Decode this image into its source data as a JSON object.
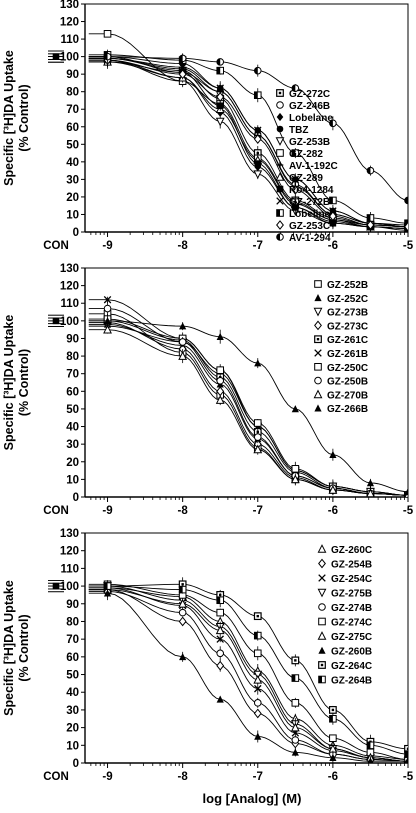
{
  "figure": {
    "xlabel": "log [Analog] (M)"
  },
  "chart_data": [
    {
      "type": "line",
      "panel": "top",
      "ylabel": "Specific [³H]DA Uptake",
      "ylabel2": "(% Control)",
      "xlabel": "",
      "xlim": [
        -9.3,
        -5
      ],
      "ylim": [
        0,
        130
      ],
      "yticks": [
        "0",
        "10",
        "20",
        "30",
        "40",
        "50",
        "60",
        "70",
        "80",
        "90",
        "100",
        "110",
        "120",
        "130"
      ],
      "xticks": [
        "CON",
        "-9",
        "-8",
        "-7",
        "-6",
        "-5"
      ],
      "legend_columns": 1,
      "series": [
        {
          "name": "GZ-272C",
          "marker": "square-dot",
          "x": [
            -9,
            -8,
            -7.5,
            -7,
            -6.5,
            -6,
            -5.5,
            -5
          ],
          "y": [
            99,
            92,
            76,
            45,
            18,
            8,
            4,
            3
          ]
        },
        {
          "name": "GZ-246B",
          "marker": "circle-open",
          "x": [
            -9,
            -8,
            -7.5,
            -7,
            -6.5,
            -6,
            -5.5,
            -5
          ],
          "y": [
            97,
            91,
            80,
            55,
            27,
            10,
            5,
            4
          ]
        },
        {
          "name": "Lobelane",
          "marker": "diamond-filled",
          "x": [
            -9,
            -8,
            -7.5,
            -7,
            -6.5,
            -6,
            -5.5,
            -5
          ],
          "y": [
            98,
            88,
            68,
            37,
            14,
            6,
            3,
            2
          ]
        },
        {
          "name": "TBZ",
          "marker": "circle-filled",
          "x": [
            -9,
            -8,
            -7.5,
            -7,
            -6.5,
            -6,
            -5.5,
            -5
          ],
          "y": [
            100,
            96,
            82,
            58,
            30,
            12,
            5,
            3
          ]
        },
        {
          "name": "GZ-253B",
          "marker": "triangle-down-open",
          "x": [
            -9,
            -8,
            -7.5,
            -7,
            -6.5,
            -6,
            -5.5,
            -5
          ],
          "y": [
            98,
            86,
            63,
            33,
            12,
            5,
            3,
            2
          ]
        },
        {
          "name": "GZ-282",
          "marker": "square-open",
          "x": [
            -9,
            -8,
            -7.5,
            -7,
            -6.5,
            -6,
            -5.5,
            -5
          ],
          "y": [
            113,
            86,
            73,
            42,
            17,
            7,
            4,
            3
          ]
        },
        {
          "name": "AV-1-192C",
          "marker": "plus",
          "x": [
            -9,
            -8,
            -7.5,
            -7,
            -6.5,
            -6,
            -5.5,
            -5
          ],
          "y": [
            99,
            93,
            80,
            55,
            26,
            10,
            5,
            3
          ]
        },
        {
          "name": "GZ-289",
          "marker": "triangle-open",
          "x": [
            -9,
            -8,
            -7.5,
            -7,
            -6.5,
            -6,
            -5.5,
            -5
          ],
          "y": [
            97,
            88,
            70,
            41,
            16,
            7,
            3,
            2
          ]
        },
        {
          "name": "Ro4-1284",
          "marker": "square-filled",
          "x": [
            -9,
            -8,
            -7.5,
            -7,
            -6.5,
            -6,
            -5.5,
            -5
          ],
          "y": [
            100,
            91,
            72,
            39,
            14,
            5,
            3,
            1
          ]
        },
        {
          "name": "GZ-272B",
          "marker": "x",
          "x": [
            -9,
            -8,
            -7.5,
            -7,
            -6.5,
            -6,
            -5.5,
            -5
          ],
          "y": [
            99,
            94,
            82,
            58,
            30,
            12,
            5,
            3
          ]
        },
        {
          "name": "Lobeline",
          "marker": "square-half",
          "x": [
            -9,
            -8,
            -7.5,
            -7,
            -6.5,
            -6,
            -5.5,
            -5
          ],
          "y": [
            101,
            98,
            92,
            78,
            45,
            18,
            8,
            5
          ]
        },
        {
          "name": "GZ-253C",
          "marker": "diamond-open",
          "x": [
            -9,
            -8,
            -7.5,
            -7,
            -6.5,
            -6,
            -5.5,
            -5
          ],
          "y": [
            98,
            90,
            77,
            53,
            24,
            9,
            4,
            3
          ]
        },
        {
          "name": "AV-1-294",
          "marker": "circle-half",
          "x": [
            -9,
            -8,
            -7.5,
            -7,
            -6.5,
            -6,
            -5.5,
            -5
          ],
          "y": [
            100,
            99,
            97,
            92,
            82,
            62,
            35,
            18
          ]
        }
      ]
    },
    {
      "type": "line",
      "panel": "middle",
      "ylabel": "Specific [³H]DA Uptake",
      "ylabel2": "(% Control)",
      "xlabel": "",
      "xlim": [
        -9.3,
        -5
      ],
      "ylim": [
        0,
        130
      ],
      "yticks": [
        "0",
        "10",
        "20",
        "30",
        "40",
        "50",
        "60",
        "70",
        "80",
        "90",
        "100",
        "110",
        "120",
        "130"
      ],
      "xticks": [
        "CON",
        "-9",
        "-8",
        "-7",
        "-6",
        "-5"
      ],
      "legend_columns": 1,
      "series": [
        {
          "name": "GZ-252B",
          "marker": "square-open",
          "x": [
            -9,
            -8,
            -7.5,
            -7,
            -6.5,
            -6,
            -5.5,
            -5
          ],
          "y": [
            104,
            82,
            58,
            28,
            10,
            4,
            2,
            1
          ]
        },
        {
          "name": "GZ-252C",
          "marker": "triangle-filled",
          "x": [
            -9,
            -8,
            -7.5,
            -7,
            -6.5,
            -6,
            -5.5,
            -5
          ],
          "y": [
            98,
            86,
            64,
            33,
            12,
            5,
            2,
            1
          ]
        },
        {
          "name": "GZ-273B",
          "marker": "triangle-down-open",
          "x": [
            -9,
            -8,
            -7.5,
            -7,
            -6.5,
            -6,
            -5.5,
            -5
          ],
          "y": [
            97,
            88,
            70,
            40,
            15,
            6,
            3,
            1
          ]
        },
        {
          "name": "GZ-273C",
          "marker": "diamond-open",
          "x": [
            -9,
            -8,
            -7.5,
            -7,
            -6.5,
            -6,
            -5.5,
            -5
          ],
          "y": [
            99,
            84,
            60,
            30,
            11,
            4,
            2,
            1
          ]
        },
        {
          "name": "GZ-261C",
          "marker": "square-dot",
          "x": [
            -9,
            -8,
            -7.5,
            -7,
            -6.5,
            -6,
            -5.5,
            -5
          ],
          "y": [
            100,
            89,
            68,
            37,
            14,
            5,
            2,
            1
          ]
        },
        {
          "name": "GZ-261B",
          "marker": "x",
          "x": [
            -9,
            -8,
            -7.5,
            -7,
            -6.5,
            -6,
            -5.5,
            -5
          ],
          "y": [
            112,
            90,
            72,
            40,
            15,
            6,
            3,
            1
          ]
        },
        {
          "name": "GZ-250C",
          "marker": "square-open",
          "x": [
            -9,
            -8,
            -7.5,
            -7,
            -6.5,
            -6,
            -5.5,
            -5
          ],
          "y": [
            101,
            90,
            72,
            42,
            16,
            6,
            3,
            1
          ]
        },
        {
          "name": "GZ-250B",
          "marker": "circle-open",
          "x": [
            -9,
            -8,
            -7.5,
            -7,
            -6.5,
            -6,
            -5.5,
            -5
          ],
          "y": [
            107,
            88,
            66,
            34,
            12,
            5,
            2,
            1
          ]
        },
        {
          "name": "GZ-270B",
          "marker": "triangle-open",
          "x": [
            -9,
            -8,
            -7.5,
            -7,
            -6.5,
            -6,
            -5.5,
            -5
          ],
          "y": [
            95,
            80,
            55,
            27,
            10,
            4,
            2,
            1
          ]
        },
        {
          "name": "GZ-266B",
          "marker": "triangle-filled",
          "x": [
            -9,
            -8,
            -7.5,
            -7,
            -6.5,
            -6,
            -5.5,
            -5
          ],
          "y": [
            100,
            97,
            91,
            76,
            50,
            24,
            8,
            3
          ]
        }
      ]
    },
    {
      "type": "line",
      "panel": "bottom",
      "ylabel": "Specific [³H]DA Uptake",
      "ylabel2": "(% Control)",
      "xlabel": "log [Analog] (M)",
      "xlim": [
        -9.3,
        -5
      ],
      "ylim": [
        0,
        130
      ],
      "yticks": [
        "0",
        "10",
        "20",
        "30",
        "40",
        "50",
        "60",
        "70",
        "80",
        "90",
        "100",
        "110",
        "120",
        "130"
      ],
      "xticks": [
        "CON",
        "-9",
        "-8",
        "-7",
        "-6",
        "-5"
      ],
      "legend_columns": 1,
      "series": [
        {
          "name": "GZ-260C",
          "marker": "triangle-open",
          "x": [
            -9,
            -8,
            -7.5,
            -7,
            -6.5,
            -6,
            -5.5,
            -5
          ],
          "y": [
            99,
            94,
            80,
            52,
            25,
            10,
            4,
            2
          ]
        },
        {
          "name": "GZ-254B",
          "marker": "diamond-open",
          "x": [
            -9,
            -8,
            -7.5,
            -7,
            -6.5,
            -6,
            -5.5,
            -5
          ],
          "y": [
            98,
            80,
            55,
            28,
            11,
            5,
            2,
            1
          ]
        },
        {
          "name": "GZ-254C",
          "marker": "x",
          "x": [
            -9,
            -8,
            -7.5,
            -7,
            -6.5,
            -6,
            -5.5,
            -5
          ],
          "y": [
            99,
            89,
            70,
            42,
            17,
            7,
            3,
            1
          ]
        },
        {
          "name": "GZ-275B",
          "marker": "triangle-down-open",
          "x": [
            -9,
            -8,
            -7.5,
            -7,
            -6.5,
            -6,
            -5.5,
            -5
          ],
          "y": [
            100,
            92,
            77,
            50,
            22,
            8,
            3,
            1
          ]
        },
        {
          "name": "GZ-274B",
          "marker": "circle-open",
          "x": [
            -9,
            -8,
            -7.5,
            -7,
            -6.5,
            -6,
            -5.5,
            -5
          ],
          "y": [
            97,
            85,
            62,
            34,
            13,
            5,
            2,
            1
          ]
        },
        {
          "name": "GZ-274C",
          "marker": "square-open",
          "x": [
            -9,
            -8,
            -7.5,
            -7,
            -6.5,
            -6,
            -5.5,
            -5
          ],
          "y": [
            101,
            95,
            85,
            62,
            34,
            14,
            6,
            2
          ]
        },
        {
          "name": "GZ-275C",
          "marker": "triangle-open",
          "x": [
            -9,
            -8,
            -7.5,
            -7,
            -6.5,
            -6,
            -5.5,
            -5
          ],
          "y": [
            98,
            90,
            75,
            47,
            20,
            8,
            3,
            1
          ]
        },
        {
          "name": "GZ-260B",
          "marker": "triangle-filled",
          "x": [
            -9,
            -8,
            -7.5,
            -7,
            -6.5,
            -6,
            -5.5,
            -5
          ],
          "y": [
            96,
            60,
            36,
            15,
            6,
            3,
            1,
            1
          ]
        },
        {
          "name": "GZ-264C",
          "marker": "square-dot",
          "x": [
            -9,
            -8,
            -7.5,
            -7,
            -6.5,
            -6,
            -5.5,
            -5
          ],
          "y": [
            100,
            101,
            95,
            83,
            58,
            30,
            12,
            8
          ]
        },
        {
          "name": "GZ-264B",
          "marker": "square-half",
          "x": [
            -9,
            -8,
            -7.5,
            -7,
            -6.5,
            -6,
            -5.5,
            -5
          ],
          "y": [
            100,
            98,
            92,
            72,
            48,
            25,
            10,
            5
          ]
        }
      ]
    }
  ],
  "colors": {
    "ink": "#000000",
    "background": "#ffffff"
  }
}
